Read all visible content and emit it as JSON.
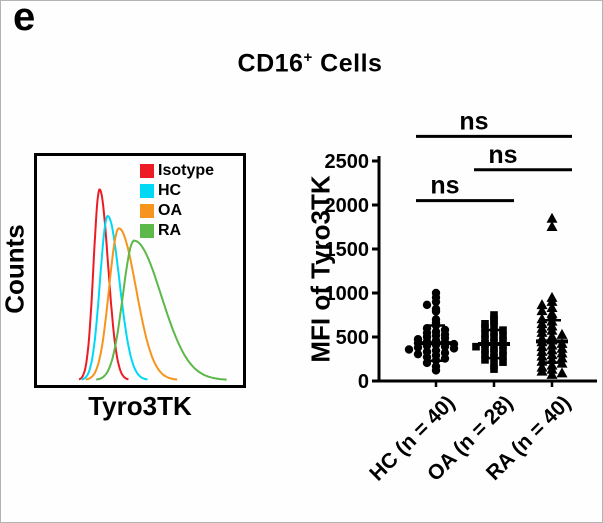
{
  "panel_label": "e",
  "title": {
    "main": "CD16",
    "sup": "+",
    "rest": " Cells"
  },
  "chart_data": [
    {
      "type": "line",
      "role": "flow-cytometry-histogram",
      "xlabel": "Tyro3TK",
      "ylabel": "Counts",
      "legend": [
        {
          "label": "Isotype",
          "color": "#ed1c24"
        },
        {
          "label": "HC",
          "color": "#00d9f5"
        },
        {
          "label": "OA",
          "color": "#f7941e"
        },
        {
          "label": "RA",
          "color": "#5cb849"
        }
      ],
      "series": [
        {
          "name": "Isotype",
          "color": "#ed1c24",
          "peak": 0.3,
          "sigma_l": 0.03,
          "sigma_r": 0.042,
          "height": 0.93
        },
        {
          "name": "HC",
          "color": "#00d9f5",
          "peak": 0.34,
          "sigma_l": 0.038,
          "sigma_r": 0.058,
          "height": 0.8
        },
        {
          "name": "OA",
          "color": "#f7941e",
          "peak": 0.395,
          "sigma_l": 0.048,
          "sigma_r": 0.085,
          "height": 0.74
        },
        {
          "name": "RA",
          "color": "#5cb849",
          "peak": 0.47,
          "sigma_l": 0.055,
          "sigma_r": 0.135,
          "height": 0.68
        }
      ]
    },
    {
      "type": "scatter",
      "title": "CD16+ Cells",
      "ylabel": "MFI of Tyro3TK",
      "ylim": [
        0,
        2500
      ],
      "yticks": [
        0,
        500,
        1000,
        1500,
        2000,
        2500
      ],
      "groups": [
        {
          "label": "HC (n = 40)",
          "n": 40,
          "marker": "circle",
          "mean": 430,
          "sd": 200,
          "values": [
            1000,
            950,
            900,
            865,
            820,
            790,
            700,
            660,
            630,
            600,
            580,
            560,
            545,
            530,
            515,
            500,
            488,
            475,
            462,
            450,
            440,
            430,
            420,
            410,
            400,
            390,
            380,
            370,
            358,
            345,
            333,
            320,
            305,
            290,
            272,
            255,
            235,
            205,
            165,
            120
          ]
        },
        {
          "label": "OA (n = 28)",
          "n": 28,
          "marker": "square",
          "mean": 420,
          "sd": 160,
          "values": [
            750,
            705,
            675,
            650,
            625,
            600,
            578,
            556,
            535,
            515,
            495,
            476,
            458,
            440,
            423,
            406,
            390,
            374,
            358,
            342,
            325,
            306,
            286,
            264,
            240,
            214,
            180,
            135
          ]
        },
        {
          "label": "RA (n = 40)",
          "n": 40,
          "marker": "triangle",
          "mean": 450,
          "sd": 240,
          "values": [
            1850,
            1755,
            950,
            905,
            868,
            835,
            800,
            768,
            738,
            708,
            680,
            652,
            625,
            600,
            576,
            553,
            530,
            508,
            487,
            466,
            446,
            427,
            408,
            390,
            372,
            354,
            336,
            318,
            300,
            282,
            263,
            244,
            224,
            203,
            181,
            158,
            134,
            112,
            92,
            75
          ]
        }
      ],
      "significance": [
        {
          "pair": [
            0,
            1
          ],
          "label": "ns",
          "y": 2050
        },
        {
          "pair": [
            1,
            2
          ],
          "label": "ns",
          "y": 2400
        },
        {
          "pair": [
            0,
            2
          ],
          "label": "ns",
          "y": 2780
        }
      ]
    }
  ]
}
